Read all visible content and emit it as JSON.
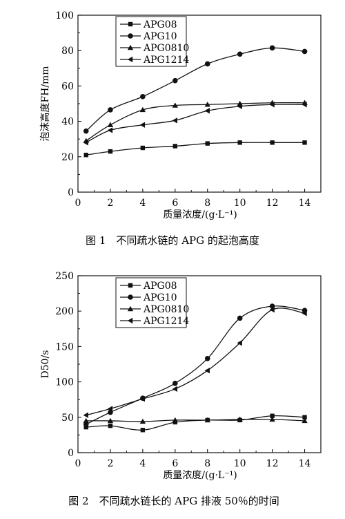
{
  "chart_data": [
    {
      "type": "line",
      "title": "",
      "xlabel": "质量浓度/(g·L⁻¹)",
      "ylabel": "泡沫高度FH/mm",
      "caption": "图 1　不同疏水链的 APG 的起泡高度",
      "xlim": [
        0,
        15
      ],
      "ylim": [
        0,
        100
      ],
      "xticks": [
        "0",
        "2",
        "4",
        "6",
        "8",
        "10",
        "12",
        "14"
      ],
      "yticks": [
        "0",
        "20",
        "40",
        "60",
        "80",
        "100"
      ],
      "legend_position": "top-left",
      "series": [
        {
          "name": "APG08",
          "marker": "square",
          "x": [
            0.5,
            2,
            4,
            6,
            8,
            10,
            12,
            14
          ],
          "y": [
            21,
            23,
            25,
            26,
            27.5,
            28,
            28,
            28
          ]
        },
        {
          "name": "APG10",
          "marker": "circle",
          "x": [
            0.5,
            2,
            4,
            6,
            8,
            10,
            12,
            14
          ],
          "y": [
            34.5,
            46.5,
            54,
            63,
            72.5,
            78,
            81.5,
            79.5
          ]
        },
        {
          "name": "APG0810",
          "marker": "triangle-up",
          "x": [
            0.5,
            2,
            4,
            6,
            8,
            10,
            12,
            14
          ],
          "y": [
            29,
            38,
            46.5,
            49,
            49.5,
            50,
            50.5,
            50.5
          ]
        },
        {
          "name": "APG1214",
          "marker": "triangle-left",
          "x": [
            0.5,
            2,
            4,
            6,
            8,
            10,
            12,
            14
          ],
          "y": [
            28,
            35,
            38,
            40.5,
            46,
            48.5,
            49.5,
            49.5
          ]
        }
      ]
    },
    {
      "type": "line",
      "title": "",
      "xlabel": "质量浓度/(g·L⁻¹)",
      "ylabel": "D50/s",
      "caption": "图 2　不同疏水链长的 APG 排液 50％的时间",
      "xlim": [
        0,
        15
      ],
      "ylim": [
        0,
        250
      ],
      "xticks": [
        "0",
        "2",
        "4",
        "6",
        "8",
        "10",
        "12",
        "14"
      ],
      "yticks": [
        "0",
        "50",
        "100",
        "150",
        "200",
        "250"
      ],
      "legend_position": "top-left",
      "series": [
        {
          "name": "APG08",
          "marker": "square",
          "x": [
            0.5,
            2,
            4,
            6,
            8,
            10,
            12,
            14
          ],
          "y": [
            36,
            38,
            32,
            43,
            46,
            46,
            52,
            50
          ]
        },
        {
          "name": "APG10",
          "marker": "circle",
          "x": [
            0.5,
            2,
            4,
            6,
            8,
            10,
            12,
            14
          ],
          "y": [
            40,
            57,
            77,
            98,
            133,
            190,
            207,
            201
          ]
        },
        {
          "name": "APG0810",
          "marker": "triangle-up",
          "x": [
            0.5,
            2,
            4,
            6,
            8,
            10,
            12,
            14
          ],
          "y": [
            45,
            45,
            44,
            46,
            46,
            47,
            47,
            45
          ]
        },
        {
          "name": "APG1214",
          "marker": "triangle-left",
          "x": [
            0.5,
            2,
            4,
            6,
            8,
            10,
            12,
            14
          ],
          "y": [
            53,
            62,
            76,
            90,
            116,
            155,
            202,
            197
          ]
        }
      ]
    }
  ]
}
